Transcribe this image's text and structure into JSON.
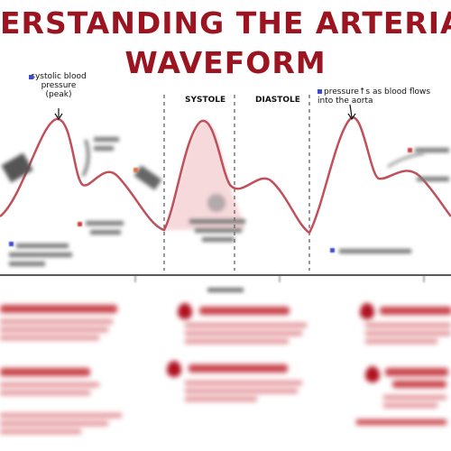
{
  "title": {
    "line1": "ERSTANDING THE ARTERIAL PRES",
    "line2": "WAVEFORM"
  },
  "phases": {
    "systole": "SYSTOLE",
    "diastole": "DIASTOLE"
  },
  "annotations": {
    "systolic_peak": "systolic blood pressure (peak)",
    "pressure_rise": "pressure↑s as blood flows into the aorta"
  },
  "colors": {
    "title": "#9b1420",
    "waveform": "#c0505a",
    "fill": "#f3c9cc",
    "box_text": "#c0303c",
    "drop": "#b0101e",
    "blue_marker": "#3a4ccf"
  }
}
